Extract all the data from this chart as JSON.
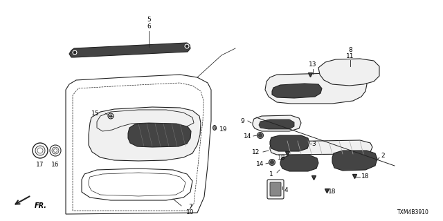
{
  "background_color": "#ffffff",
  "part_number_code": "TXM4B3910",
  "line_color": "#222222",
  "fill_light": "#f0f0f0",
  "fill_dark": "#444444",
  "fill_mid": "#888888"
}
